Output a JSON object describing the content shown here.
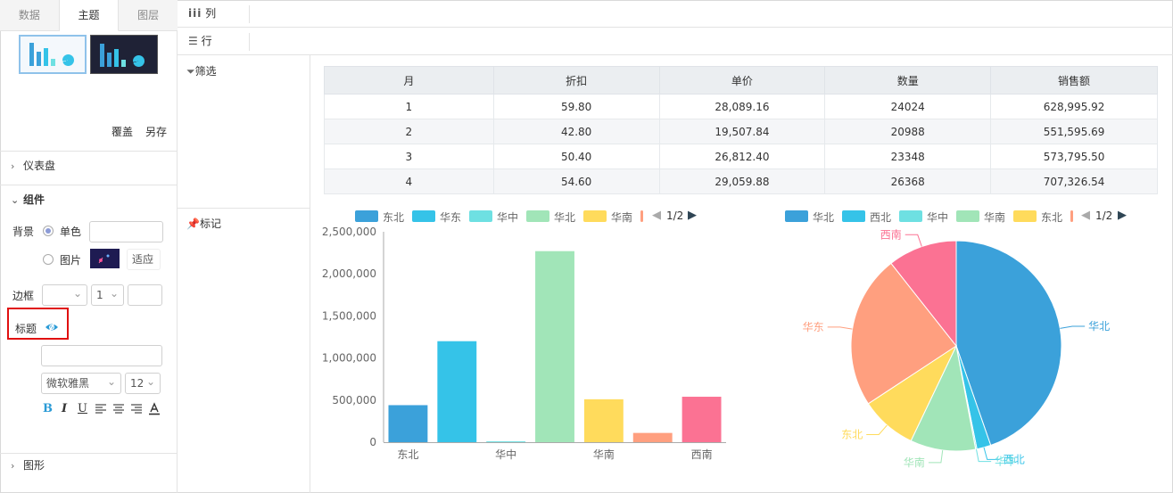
{
  "left_panel": {
    "tabs": [
      {
        "label": "数据",
        "active": false
      },
      {
        "label": "主题",
        "active": true
      },
      {
        "label": "图层",
        "active": false
      }
    ],
    "actions": {
      "overwrite": "覆盖",
      "save_as": "另存"
    },
    "dashboard_section": "仪表盘",
    "component_section": "组件",
    "background": {
      "label": "背景",
      "solid": "单色",
      "image": "图片",
      "fit": "适应",
      "selected": "solid"
    },
    "border": {
      "label": "边框",
      "width": "1"
    },
    "title": {
      "label": "标题",
      "visibility_icon": "eye-icon"
    },
    "font": {
      "family": "微软雅黑",
      "size": "12"
    },
    "format_buttons": [
      "B",
      "I",
      "U"
    ],
    "graphic_section": "图形"
  },
  "fields": {
    "columns_label": "列",
    "rows_label": "行",
    "filter_label": "筛选",
    "marks_label": "标记"
  },
  "table": {
    "headers": [
      "月",
      "折扣",
      "单价",
      "数量",
      "销售额"
    ],
    "rows": [
      [
        "1",
        "59.80",
        "28,089.16",
        "24024",
        "628,995.92"
      ],
      [
        "2",
        "42.80",
        "19,507.84",
        "20988",
        "551,595.69"
      ],
      [
        "3",
        "50.40",
        "26,812.40",
        "23348",
        "573,795.50"
      ],
      [
        "4",
        "54.60",
        "29,059.88",
        "26368",
        "707,326.54"
      ]
    ]
  },
  "bar_legend": {
    "items": [
      {
        "name": "东北",
        "color": "#3ba1da"
      },
      {
        "name": "华东",
        "color": "#35c3e8"
      },
      {
        "name": "华中",
        "color": "#6ee0e2"
      },
      {
        "name": "华北",
        "color": "#a1e5b8"
      },
      {
        "name": "华南",
        "color": "#ffdb5c"
      }
    ],
    "page": "1/2"
  },
  "pie_legend": {
    "items": [
      {
        "name": "华北",
        "color": "#3ba1da"
      },
      {
        "name": "西北",
        "color": "#35c3e8"
      },
      {
        "name": "华中",
        "color": "#6ee0e2"
      },
      {
        "name": "华南",
        "color": "#a1e5b8"
      },
      {
        "name": "东北",
        "color": "#ffdb5c"
      }
    ],
    "page": "1/2"
  },
  "chart_data": [
    {
      "type": "bar",
      "categories": [
        "东北",
        "华东",
        "华中",
        "华北",
        "华南",
        "西北",
        "西南"
      ],
      "x_tick_labels": [
        "东北",
        "",
        "华中",
        "",
        "华南",
        "",
        "西南"
      ],
      "values": [
        440000,
        1200000,
        10000,
        2270000,
        510000,
        110000,
        540000
      ],
      "colors": [
        "#3ba1da",
        "#35c3e8",
        "#6ee0e2",
        "#a1e5b8",
        "#ffdb5c",
        "#ff9f7f",
        "#fb7293"
      ],
      "y_ticks": [
        "0",
        "500,000",
        "1,000,000",
        "1,500,000",
        "2,000,000",
        "2,500,000"
      ],
      "ylim": [
        0,
        2500000
      ]
    },
    {
      "type": "pie",
      "slices": [
        {
          "name": "华北",
          "value": 2270000,
          "color": "#3ba1da"
        },
        {
          "name": "西北",
          "value": 110000,
          "color": "#35c3e8"
        },
        {
          "name": "华中",
          "value": 10000,
          "color": "#6ee0e2"
        },
        {
          "name": "华南",
          "value": 510000,
          "color": "#a1e5b8"
        },
        {
          "name": "东北",
          "value": 440000,
          "color": "#ffdb5c"
        },
        {
          "name": "华东",
          "value": 1200000,
          "color": "#ff9f7f"
        },
        {
          "name": "西南",
          "value": 540000,
          "color": "#fb7293"
        }
      ]
    }
  ]
}
